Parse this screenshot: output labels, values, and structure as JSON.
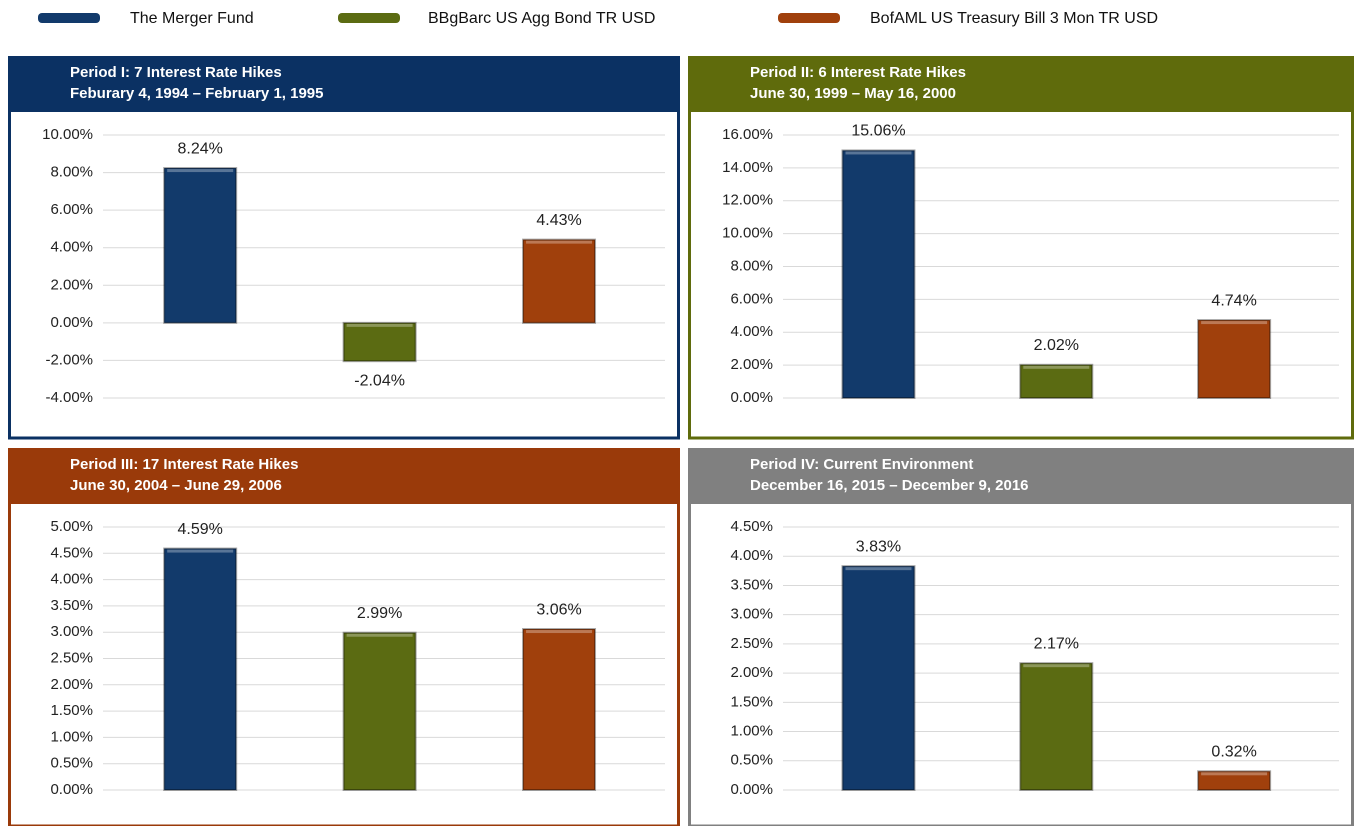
{
  "legend": {
    "series": [
      {
        "name": "The Merger Fund",
        "color": "#123a6b"
      },
      {
        "name": "BBgBarc US Agg Bond TR USD",
        "color": "#5b6b12"
      },
      {
        "name": "BofAML US Treasury Bill 3 Mon TR USD",
        "color": "#a0400c"
      }
    ]
  },
  "negative_label_color": "#c0282d",
  "chart_data": [
    {
      "type": "bar",
      "title": "Period I:   7 Interest Rate Hikes",
      "subtitle": "Feburary 4, 1994 – February 1, 1995",
      "header_color": "#0b3163",
      "values": [
        8.24,
        -2.04,
        4.43
      ],
      "value_labels": [
        "8.24%",
        "-2.04%",
        "4.43%"
      ],
      "ylim": [
        -4,
        10
      ],
      "grid": true,
      "yticks": [
        {
          "value": -4,
          "label": "-4.00%"
        },
        {
          "value": -2,
          "label": "-2.00%"
        },
        {
          "value": 0,
          "label": "0.00%"
        },
        {
          "value": 2,
          "label": "2.00%"
        },
        {
          "value": 4,
          "label": "4.00%"
        },
        {
          "value": 6,
          "label": "6.00%"
        },
        {
          "value": 8,
          "label": "8.00%"
        },
        {
          "value": 10,
          "label": "10.00%"
        }
      ]
    },
    {
      "type": "bar",
      "title": "Period II:   6 Interest Rate Hikes",
      "subtitle": "June 30, 1999 – May 16, 2000",
      "header_color": "#5f6b0c",
      "values": [
        15.06,
        2.02,
        4.74
      ],
      "value_labels": [
        "15.06%",
        "2.02%",
        "4.74%"
      ],
      "ylim": [
        0,
        16
      ],
      "grid": true,
      "yticks": [
        {
          "value": 0,
          "label": "0.00%"
        },
        {
          "value": 2,
          "label": "2.00%"
        },
        {
          "value": 4,
          "label": "4.00%"
        },
        {
          "value": 6,
          "label": "6.00%"
        },
        {
          "value": 8,
          "label": "8.00%"
        },
        {
          "value": 10,
          "label": "10.00%"
        },
        {
          "value": 12,
          "label": "12.00%"
        },
        {
          "value": 14,
          "label": "14.00%"
        },
        {
          "value": 16,
          "label": "16.00%"
        }
      ]
    },
    {
      "type": "bar",
      "title": "Period III:   17 Interest Rate Hikes",
      "subtitle": "June 30, 2004 – June 29, 2006",
      "header_color": "#9a3a0a",
      "values": [
        4.59,
        2.99,
        3.06
      ],
      "value_labels": [
        "4.59%",
        "2.99%",
        "3.06%"
      ],
      "ylim": [
        0,
        5
      ],
      "grid": true,
      "yticks": [
        {
          "value": 0,
          "label": "0.00%"
        },
        {
          "value": 0.5,
          "label": "0.50%"
        },
        {
          "value": 1,
          "label": "1.00%"
        },
        {
          "value": 1.5,
          "label": "1.50%"
        },
        {
          "value": 2,
          "label": "2.00%"
        },
        {
          "value": 2.5,
          "label": "2.50%"
        },
        {
          "value": 3,
          "label": "3.00%"
        },
        {
          "value": 3.5,
          "label": "3.50%"
        },
        {
          "value": 4,
          "label": "4.00%"
        },
        {
          "value": 4.5,
          "label": "4.50%"
        },
        {
          "value": 5,
          "label": "5.00%"
        }
      ]
    },
    {
      "type": "bar",
      "title": "Period IV:   Current Environment",
      "subtitle": "December 16, 2015 – December 9, 2016",
      "header_color": "#808080",
      "values": [
        3.83,
        2.17,
        0.32
      ],
      "value_labels": [
        "3.83%",
        "2.17%",
        "0.32%"
      ],
      "ylim": [
        0,
        4.5
      ],
      "grid": true,
      "yticks": [
        {
          "value": 0,
          "label": "0.00%"
        },
        {
          "value": 0.5,
          "label": "0.50%"
        },
        {
          "value": 1,
          "label": "1.00%"
        },
        {
          "value": 1.5,
          "label": "1.50%"
        },
        {
          "value": 2,
          "label": "2.00%"
        },
        {
          "value": 2.5,
          "label": "2.50%"
        },
        {
          "value": 3,
          "label": "3.00%"
        },
        {
          "value": 3.5,
          "label": "3.50%"
        },
        {
          "value": 4,
          "label": "4.00%"
        },
        {
          "value": 4.5,
          "label": "4.50%"
        }
      ]
    }
  ]
}
